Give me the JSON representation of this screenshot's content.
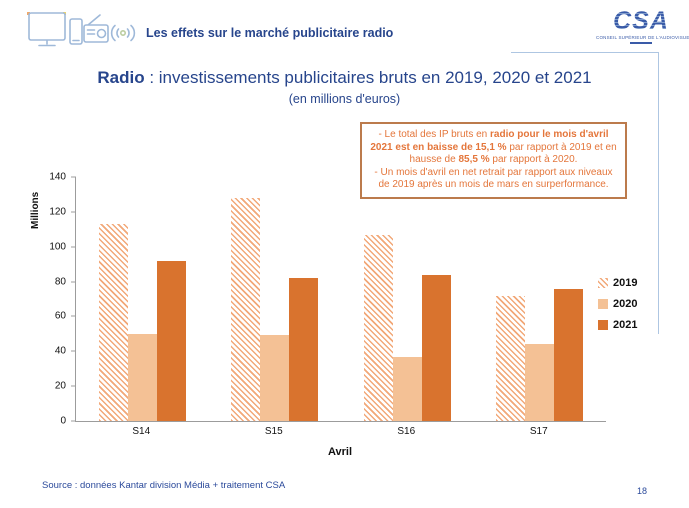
{
  "header": {
    "title": "Les effets sur le marché publicitaire radio",
    "logo_text": "CSA",
    "logo_caption": "CONSEIL SUPÉRIEUR DE L'AUDIOVISUEL"
  },
  "title": {
    "bold": "Radio",
    "rest": " : investissements publicitaires bruts en 2019, 2020 et 2021",
    "subtitle": "(en millions d'euros)"
  },
  "annotation": {
    "line1_pre": "-   Le total des IP bruts en ",
    "line1_bold1": "radio pour le mois d'avril 2021 est en baisse de 15,1 %",
    "line1_mid": " par rapport à 2019 et en hausse de ",
    "line1_bold2": "85,5 %",
    "line1_post": " par rapport à 2020.",
    "line2": "- Un mois d'avril en net retrait par rapport aux niveaux de 2019 après un mois de mars en surperformance."
  },
  "chart_data": {
    "type": "bar",
    "categories": [
      "S14",
      "S15",
      "S16",
      "S17"
    ],
    "series": [
      {
        "name": "2019",
        "style": "hatched",
        "color": "#F2A878",
        "values": [
          113,
          128,
          107,
          72
        ]
      },
      {
        "name": "2020",
        "style": "solid",
        "color": "#F4C195",
        "values": [
          50,
          49.5,
          36.5,
          44
        ]
      },
      {
        "name": "2021",
        "style": "solid",
        "color": "#D9732E",
        "values": [
          92,
          82,
          84,
          75.5
        ]
      }
    ],
    "title": "Radio : investissements publicitaires bruts en 2019, 2020 et 2021 (en millions d'euros)",
    "xlabel": "Avril",
    "ylabel": "Millions",
    "ylim": [
      0,
      140
    ],
    "yticks": [
      0,
      20,
      40,
      60,
      80,
      100,
      120,
      140
    ],
    "grid": false,
    "legend_position": "right"
  },
  "footer": {
    "source": "Source : données Kantar division Média  + traitement CSA",
    "page": "18"
  }
}
